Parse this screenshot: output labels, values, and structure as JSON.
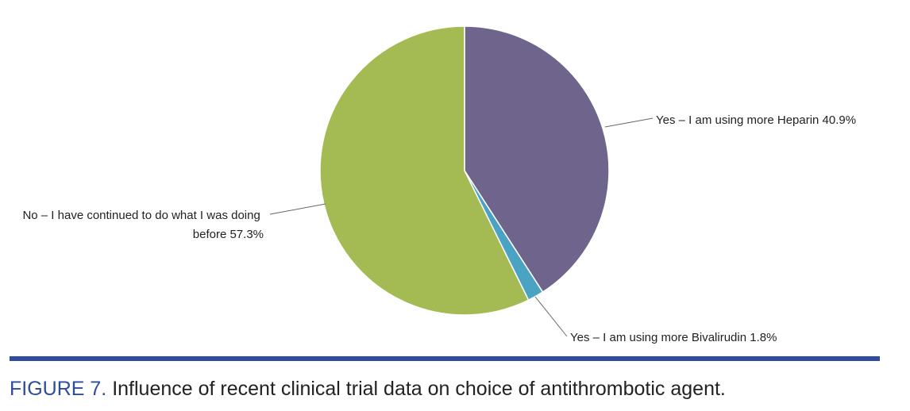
{
  "chart_data": {
    "type": "pie",
    "title": "",
    "slices": [
      {
        "label": "Yes – I am using more Heparin 40.9%",
        "value": 40.9,
        "color": "#6f648c"
      },
      {
        "label": "Yes – I am using more Bivalirudin 1.8%",
        "value": 1.8,
        "color": "#4ba3c3"
      },
      {
        "label": "No – I have continued to do what I was doing before 57.3%",
        "value": 57.3,
        "color": "#a3bb52"
      }
    ]
  },
  "figure": {
    "label": "FIGURE 7.",
    "caption": "Influence of recent clinical trial data on choice of antithrombotic agent.",
    "rule_color": "#2d4c9c"
  }
}
